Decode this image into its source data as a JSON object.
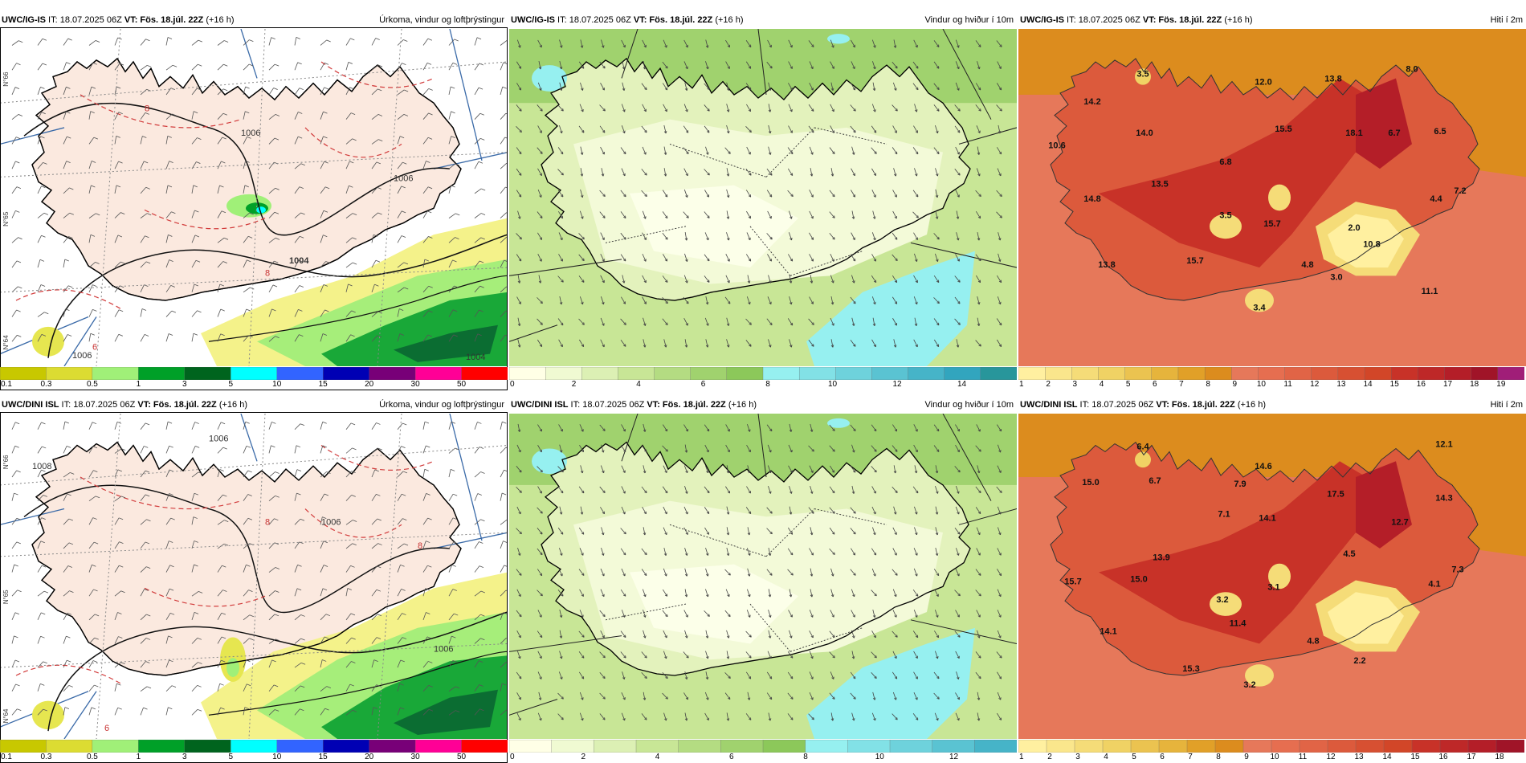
{
  "panels": [
    {
      "id": "p1",
      "model": "UWC/IG-IS",
      "it_label": "IT:",
      "it_value": "18.07.2025 06Z",
      "vt_label": "VT:",
      "vt_value": "Fös. 18.júl. 22Z",
      "lead": "(+16 h)",
      "product": "Úrkoma, vindur og loftþrýstingur",
      "type": "precip",
      "colorbar": {
        "ticks": [
          "0.1",
          "0.3",
          "0.5",
          "1",
          "3",
          "5",
          "10",
          "15",
          "20",
          "30",
          "50"
        ],
        "colors": [
          "#c8c800",
          "#dcdc32",
          "#a0f078",
          "#00a028",
          "#00641e",
          "#00ffff",
          "#3264ff",
          "#0000b4",
          "#780078",
          "#ff0096",
          "#ff0000"
        ]
      },
      "labels": [
        {
          "text": "1006"
        },
        {
          "text": "1004"
        },
        {
          "text": "1006"
        },
        {
          "text": "1006"
        },
        {
          "text": "1004"
        },
        {
          "text": "8"
        },
        {
          "text": "8"
        },
        {
          "text": "6"
        }
      ]
    },
    {
      "id": "p2",
      "model": "UWC/IG-IS",
      "it_label": "IT:",
      "it_value": "18.07.2025 06Z",
      "vt_label": "VT:",
      "vt_value": "Fös. 18.júl. 22Z",
      "lead": "(+16 h)",
      "product": "Vindur og hviður í 10m",
      "type": "wind",
      "colorbar": {
        "ticks": [
          "0",
          "2",
          "4",
          "6",
          "8",
          "10",
          "12",
          "14"
        ],
        "colors": [
          "#ffffe6",
          "#f0fad2",
          "#dcf0b4",
          "#c8e696",
          "#b4dc82",
          "#a0d26e",
          "#8cc85a",
          "#96f0f0",
          "#82e1e6",
          "#6ed2dc",
          "#5ac3d2",
          "#46b4c8",
          "#32a5be",
          "#28969b"
        ]
      }
    },
    {
      "id": "p3",
      "model": "UWC/IG-IS",
      "it_label": "IT:",
      "it_value": "18.07.2025 06Z",
      "vt_label": "VT:",
      "vt_value": "Fös. 18.júl. 22Z",
      "lead": "(+16 h)",
      "product": "Hiti í 2m",
      "type": "temp",
      "colorbar": {
        "ticks": [
          "1",
          "2",
          "3",
          "4",
          "5",
          "6",
          "7",
          "8",
          "9",
          "10",
          "11",
          "12",
          "13",
          "14",
          "15",
          "16",
          "17",
          "18",
          "19"
        ],
        "colors": [
          "#fff0a0",
          "#fae68c",
          "#f5dc78",
          "#f0d264",
          "#ebc350",
          "#e6b43c",
          "#e1a028",
          "#dc8c1e",
          "#e6785a",
          "#e66e50",
          "#e16446",
          "#dc5a3c",
          "#d75032",
          "#d24628",
          "#c83228",
          "#be2828",
          "#b41e28",
          "#a01428",
          "#a01e78"
        ]
      },
      "values": [
        "3.5",
        "12.0",
        "13.8",
        "8.0",
        "14.2",
        "10.6",
        "14.0",
        "15.5",
        "18.1",
        "6.7",
        "6.5",
        "6.8",
        "13.5",
        "14.8",
        "3.5",
        "15.7",
        "4.4",
        "7.2",
        "2.0",
        "10.8",
        "13.8",
        "15.7",
        "4.8",
        "3.0",
        "11.1",
        "3.4"
      ]
    },
    {
      "id": "p4",
      "model": "UWC/DINI ISL",
      "it_label": "IT:",
      "it_value": "18.07.2025 06Z",
      "vt_label": "VT:",
      "vt_value": "Fös. 18.júl. 22Z",
      "lead": "(+16 h)",
      "product": "Úrkoma, vindur og loftþrýstingur",
      "type": "precip",
      "colorbar": {
        "ticks": [
          "0.1",
          "0.3",
          "0.5",
          "1",
          "3",
          "5",
          "10",
          "15",
          "20",
          "30",
          "50"
        ],
        "colors": [
          "#c8c800",
          "#dcdc32",
          "#a0f078",
          "#00a028",
          "#00641e",
          "#00ffff",
          "#3264ff",
          "#0000b4",
          "#780078",
          "#ff0096",
          "#ff0000"
        ]
      },
      "labels": [
        {
          "text": "1008"
        },
        {
          "text": "1006"
        },
        {
          "text": "1006"
        },
        {
          "text": "1006"
        },
        {
          "text": "8"
        },
        {
          "text": "8"
        },
        {
          "text": "6"
        }
      ]
    },
    {
      "id": "p5",
      "model": "UWC/DINI ISL",
      "it_label": "IT:",
      "it_value": "18.07.2025 06Z",
      "vt_label": "VT:",
      "vt_value": "Fös. 18.júl. 22Z",
      "lead": "(+16 h)",
      "product": "Vindur og hviður í 10m",
      "type": "wind",
      "colorbar": {
        "ticks": [
          "0",
          "2",
          "4",
          "6",
          "8",
          "10",
          "12"
        ],
        "colors": [
          "#ffffe6",
          "#f0fad2",
          "#dcf0b4",
          "#c8e696",
          "#b4dc82",
          "#a0d26e",
          "#8cc85a",
          "#96f0f0",
          "#82e1e6",
          "#6ed2dc",
          "#5ac3d2",
          "#46b4c8"
        ]
      }
    },
    {
      "id": "p6",
      "model": "UWC/DINI ISL",
      "it_label": "IT:",
      "it_value": "18.07.2025 06Z",
      "vt_label": "VT:",
      "vt_value": "Fös. 18.júl. 22Z",
      "lead": "(+16 h)",
      "product": "Hiti í 2m",
      "type": "temp",
      "colorbar": {
        "ticks": [
          "1",
          "2",
          "3",
          "4",
          "5",
          "6",
          "7",
          "8",
          "9",
          "10",
          "11",
          "12",
          "13",
          "14",
          "15",
          "16",
          "17",
          "18"
        ],
        "colors": [
          "#fff0a0",
          "#fae68c",
          "#f5dc78",
          "#f0d264",
          "#ebc350",
          "#e6b43c",
          "#e1a028",
          "#dc8c1e",
          "#e6785a",
          "#e66e50",
          "#e16446",
          "#dc5a3c",
          "#d75032",
          "#d24628",
          "#c83228",
          "#be2828",
          "#b41e28",
          "#a01428"
        ]
      },
      "values": [
        "6.4",
        "12.1",
        "15.0",
        "6.7",
        "7.9",
        "14.6",
        "17.5",
        "14.3",
        "7.1",
        "14.1",
        "12.7",
        "13.9",
        "4.5",
        "15.7",
        "15.0",
        "3.2",
        "3.1",
        "4.1",
        "7.3",
        "14.1",
        "11.4",
        "4.8",
        "2.2",
        "15.3",
        "3.2"
      ]
    }
  ],
  "axis_labels": [
    "N°66",
    "N°65",
    "N°64"
  ]
}
